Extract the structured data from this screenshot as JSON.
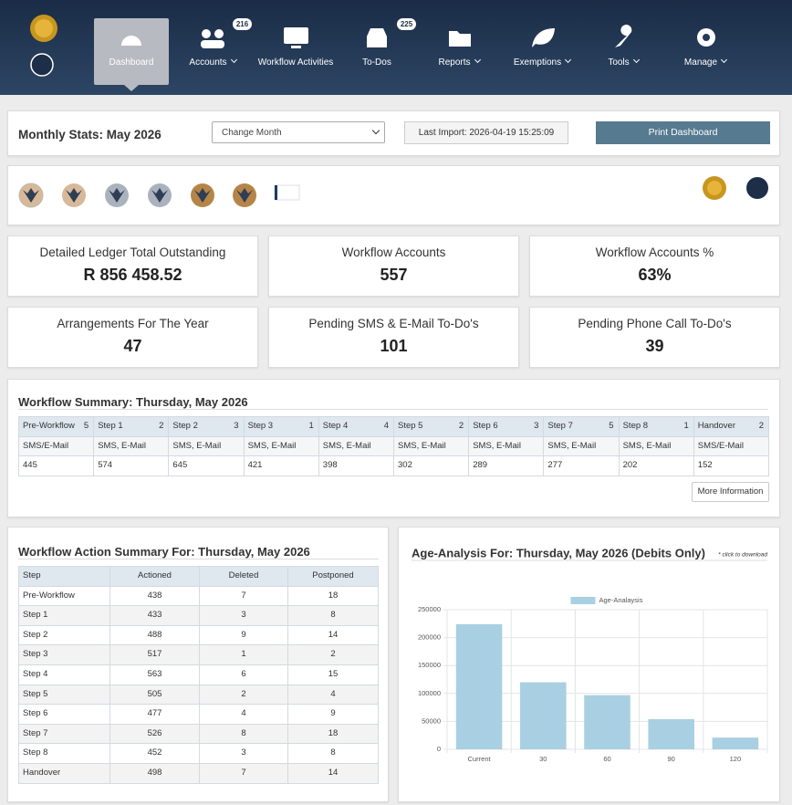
{
  "nav": {
    "items": [
      {
        "label": "Dashboard",
        "active": true
      },
      {
        "label": "Accounts",
        "badge": 216,
        "dropdown": true
      },
      {
        "label": "Workflow Activities"
      },
      {
        "label": "To-Dos",
        "badge": 225
      },
      {
        "label": "Reports",
        "dropdown": true
      },
      {
        "label": "Exemptions",
        "dropdown": true
      },
      {
        "label": "Tools",
        "dropdown": true
      },
      {
        "label": "Manage",
        "dropdown": true
      }
    ]
  },
  "stats_bar": {
    "title": "Monthly Stats: May 2026",
    "select": "Change Month",
    "last_import": "Last Import: 2026-04-19 15:25:09",
    "button": "Print Dashboard"
  },
  "cards": [
    {
      "label": "Detailed Ledger Total Outstanding",
      "value": "R 856 458.52"
    },
    {
      "label": "Workflow Accounts",
      "value": "557"
    },
    {
      "label": "Workflow Accounts %",
      "value": "63%"
    },
    {
      "label": "Arrangements For The Year",
      "value": "47"
    },
    {
      "label": "Pending SMS & E-Mail To-Do's",
      "value": "101"
    },
    {
      "label": "Pending Phone Call To-Do's",
      "value": "39"
    }
  ],
  "workflow_summary": {
    "title": "Workflow Summary: Thursday, May 2026",
    "button": "More Information",
    "columns": [
      {
        "step": "Pre-Workflow",
        "count": 5,
        "channel": "SMS/E-Mail",
        "value": 445
      },
      {
        "step": "Step 1",
        "count": 2,
        "channel": "SMS, E-Mail",
        "value": 574
      },
      {
        "step": "Step 2",
        "count": 3,
        "channel": "SMS, E-Mail",
        "value": 645
      },
      {
        "step": "Step 3",
        "count": 1,
        "channel": "SMS, E-Mail",
        "value": 421
      },
      {
        "step": "Step 4",
        "count": 4,
        "channel": "SMS, E-Mail",
        "value": 398
      },
      {
        "step": "Step 5",
        "count": 2,
        "channel": "SMS, E-Mail",
        "value": 302
      },
      {
        "step": "Step 6",
        "count": 3,
        "channel": "SMS, E-Mail",
        "value": 289
      },
      {
        "step": "Step 7",
        "count": 5,
        "channel": "SMS, E-Mail",
        "value": 277
      },
      {
        "step": "Step 8",
        "count": 1,
        "channel": "SMS, E-Mail",
        "value": 202
      },
      {
        "step": "Handover",
        "count": 2,
        "channel": "SMS/E-Mail",
        "value": 152
      }
    ]
  },
  "action_summary": {
    "title": "Workflow Action Summary For: Thursday, May 2026",
    "header": [
      "Step",
      "Actioned",
      "Deleted",
      "Postponed"
    ],
    "rows": [
      [
        "Pre-Workflow",
        438,
        7,
        18
      ],
      [
        "Step 1",
        433,
        3,
        8
      ],
      [
        "Step 2",
        488,
        9,
        14
      ],
      [
        "Step 3",
        517,
        1,
        2
      ],
      [
        "Step 4",
        563,
        6,
        15
      ],
      [
        "Step 5",
        505,
        2,
        4
      ],
      [
        "Step 6",
        477,
        4,
        9
      ],
      [
        "Step 7",
        526,
        8,
        18
      ],
      [
        "Step 8",
        452,
        3,
        8
      ],
      [
        "Handover",
        498,
        7,
        14
      ]
    ]
  },
  "chart_data": {
    "type": "bar",
    "title": "Age-Analysis For: Thursday, May 2026 (Debits Only)",
    "note": "* click to download",
    "categories": [
      "Current",
      "30",
      "60",
      "90",
      "120"
    ],
    "series": [
      {
        "name": "Age-Analaysis",
        "color": "#a9cfe2",
        "values": [
          224000,
          120000,
          97000,
          54000,
          21000
        ]
      }
    ],
    "ylim": [
      0,
      250000
    ],
    "yticks": [
      0,
      50000,
      100000,
      150000,
      200000,
      250000
    ],
    "grid": true,
    "legend": "top"
  }
}
